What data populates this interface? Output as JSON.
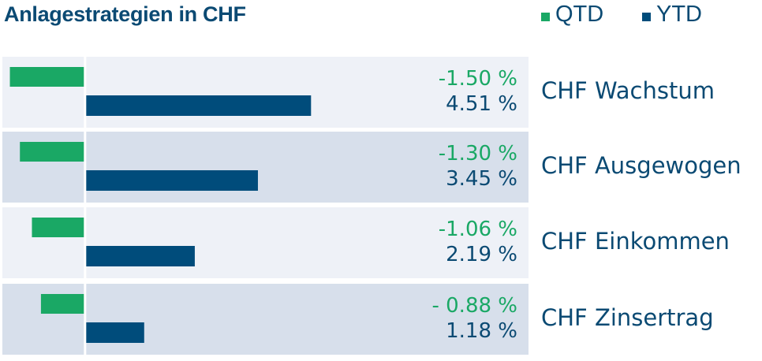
{
  "colors": {
    "qtd": "#1aa865",
    "ytd": "#004c7b",
    "row_light": "#eef1f7",
    "row_dark": "#d7dfeb",
    "axis": "#ffffff"
  },
  "chart_data": {
    "type": "bar",
    "orientation": "horizontal",
    "title": "Anlagestrategien in CHF",
    "legend": [
      "QTD",
      "YTD"
    ],
    "legend_position": "top-right",
    "categories": [
      "CHF Wachstum",
      "CHF Ausgewogen",
      "CHF Einkommen",
      "CHF Zinsertrag"
    ],
    "series": [
      {
        "name": "QTD",
        "values": [
          -1.5,
          -1.3,
          -1.06,
          -0.88
        ],
        "labels": [
          "-1.50 %",
          "-1.30 %",
          "-1.06 %",
          "- 0.88 %"
        ]
      },
      {
        "name": "YTD",
        "values": [
          4.51,
          3.45,
          2.19,
          1.18
        ],
        "labels": [
          "4.51 %",
          "3.45 %",
          "2.19 %",
          "1.18 %"
        ]
      }
    ],
    "xlim": [
      -1.65,
      8.85
    ],
    "grid": false
  }
}
